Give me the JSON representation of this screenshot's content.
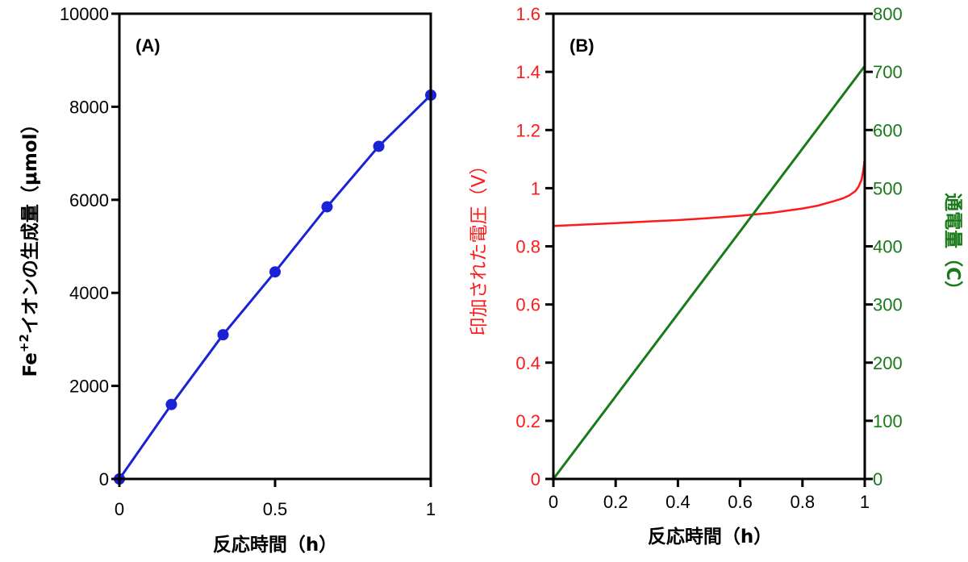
{
  "chart_data": [
    {
      "type": "line",
      "panel_label": "(A)",
      "xlabel": "反応時間（h）",
      "ylabel": {
        "prefix": "Fe",
        "sup": "+2",
        "rest": "イオンの生成量（μmol）"
      },
      "xlim": [
        0,
        1
      ],
      "ylim": [
        0,
        10000
      ],
      "x_ticks": [
        0,
        0.5,
        1
      ],
      "x_tick_labels": [
        "0",
        "0.5",
        "1"
      ],
      "y_ticks": [
        0,
        2000,
        4000,
        6000,
        8000,
        10000
      ],
      "y_tick_labels": [
        "0",
        "2000",
        "4000",
        "6000",
        "8000",
        "10000"
      ],
      "grid": false,
      "color": "#1a22d6",
      "series": [
        {
          "x": [
            0,
            0.167,
            0.333,
            0.5,
            0.667,
            0.833,
            1.0
          ],
          "y": [
            0,
            1600,
            3100,
            4450,
            5850,
            7150,
            8250
          ]
        }
      ]
    },
    {
      "type": "line",
      "panel_label": "(B)",
      "xlabel": "反応時間（h）",
      "ylabel_left": "印加された電圧（V）",
      "ylabel_right": "通電量（C）",
      "xlim": [
        0,
        1
      ],
      "ylim_left": [
        0,
        1.6
      ],
      "ylim_right": [
        0,
        800
      ],
      "x_ticks": [
        0,
        0.2,
        0.4,
        0.6,
        0.8,
        1
      ],
      "x_tick_labels": [
        "0",
        "0.2",
        "0.4",
        "0.6",
        "0.8",
        "1"
      ],
      "y_left_ticks": [
        0,
        0.2,
        0.4,
        0.6,
        0.8,
        1,
        1.2,
        1.4,
        1.6
      ],
      "y_left_tick_labels": [
        "0",
        "0.2",
        "0.4",
        "0.6",
        "0.8",
        "1",
        "1.2",
        "1.4",
        "1.6"
      ],
      "y_right_ticks": [
        0,
        100,
        200,
        300,
        400,
        500,
        600,
        700,
        800
      ],
      "y_right_tick_labels": [
        "0",
        "100",
        "200",
        "300",
        "400",
        "500",
        "600",
        "700",
        "800"
      ],
      "grid": false,
      "left_color": "#ff1a1a",
      "right_color": "#1a7a1a",
      "series": [
        {
          "axis": "left",
          "x": [
            0,
            0.1,
            0.2,
            0.3,
            0.4,
            0.5,
            0.6,
            0.7,
            0.8,
            0.85,
            0.9,
            0.93,
            0.95,
            0.97,
            0.98,
            0.99,
            0.995,
            1.0
          ],
          "y": [
            0.87,
            0.875,
            0.88,
            0.885,
            0.89,
            0.897,
            0.905,
            0.915,
            0.93,
            0.94,
            0.955,
            0.965,
            0.975,
            0.99,
            1.005,
            1.03,
            1.06,
            1.1
          ]
        },
        {
          "axis": "right",
          "x": [
            0,
            1.0
          ],
          "y": [
            0,
            710
          ]
        }
      ]
    }
  ]
}
